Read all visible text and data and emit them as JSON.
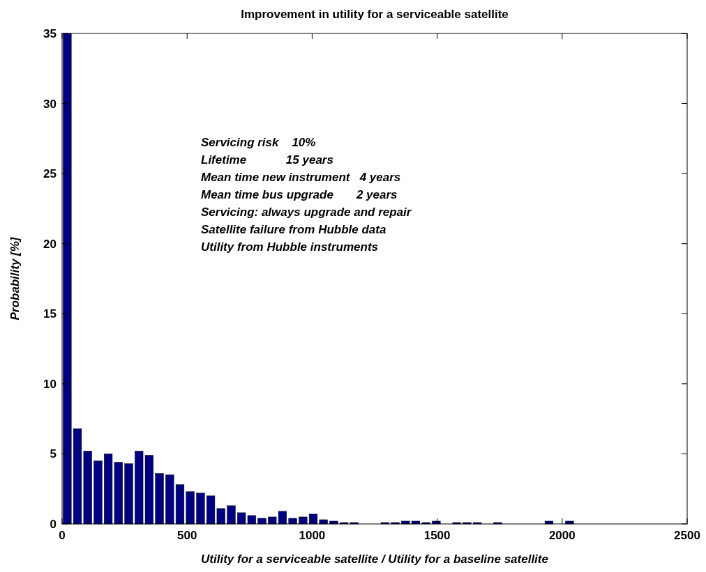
{
  "chart_data": {
    "type": "histogram",
    "title": "Improvement in utility for a serviceable satellite",
    "xlabel": "Utility for a serviceable satellite / Utility for a baseline satellite",
    "ylabel": "Probability [%]",
    "bins": [
      0,
      41,
      82,
      123,
      164,
      205,
      246,
      287,
      328,
      369,
      410,
      451,
      492,
      533,
      574,
      615,
      656,
      697,
      738,
      779,
      820,
      861,
      902,
      943,
      984,
      1025,
      1066,
      1107,
      1148,
      1189,
      1230,
      1271,
      1312,
      1353,
      1394,
      1435,
      1476,
      1517,
      1558,
      1599,
      1640,
      1681,
      1722,
      1763,
      1804,
      1845,
      1886,
      1927,
      1968,
      2009,
      2050
    ],
    "values": [
      35,
      6.8,
      5.2,
      4.5,
      5.0,
      4.4,
      4.3,
      5.2,
      4.9,
      3.6,
      3.5,
      2.8,
      2.3,
      2.2,
      2.0,
      1.1,
      1.3,
      0.8,
      0.6,
      0.4,
      0.5,
      0.9,
      0.4,
      0.5,
      0.7,
      0.3,
      0.2,
      0.1,
      0.1,
      0,
      0,
      0.1,
      0.1,
      0.2,
      0.2,
      0.1,
      0.2,
      0,
      0.1,
      0.1,
      0.1,
      0,
      0.1,
      0,
      0,
      0,
      0,
      0.2,
      0,
      0.2
    ],
    "color": "#000080",
    "xlim": [
      0,
      2500
    ],
    "xticks": [
      0,
      500,
      1000,
      1500,
      2000,
      2500
    ],
    "ylim": [
      0,
      35
    ],
    "yticks": [
      0,
      5,
      10,
      15,
      20,
      25,
      30,
      35
    ],
    "annotations": [
      "Servicing risk    10%",
      "Lifetime            15 years",
      "Mean time new instrument   4 years",
      "Mean time bus upgrade       2 years",
      "Servicing: always upgrade and repair",
      "Satellite failure from Hubble data",
      "Utility from Hubble instruments"
    ]
  }
}
